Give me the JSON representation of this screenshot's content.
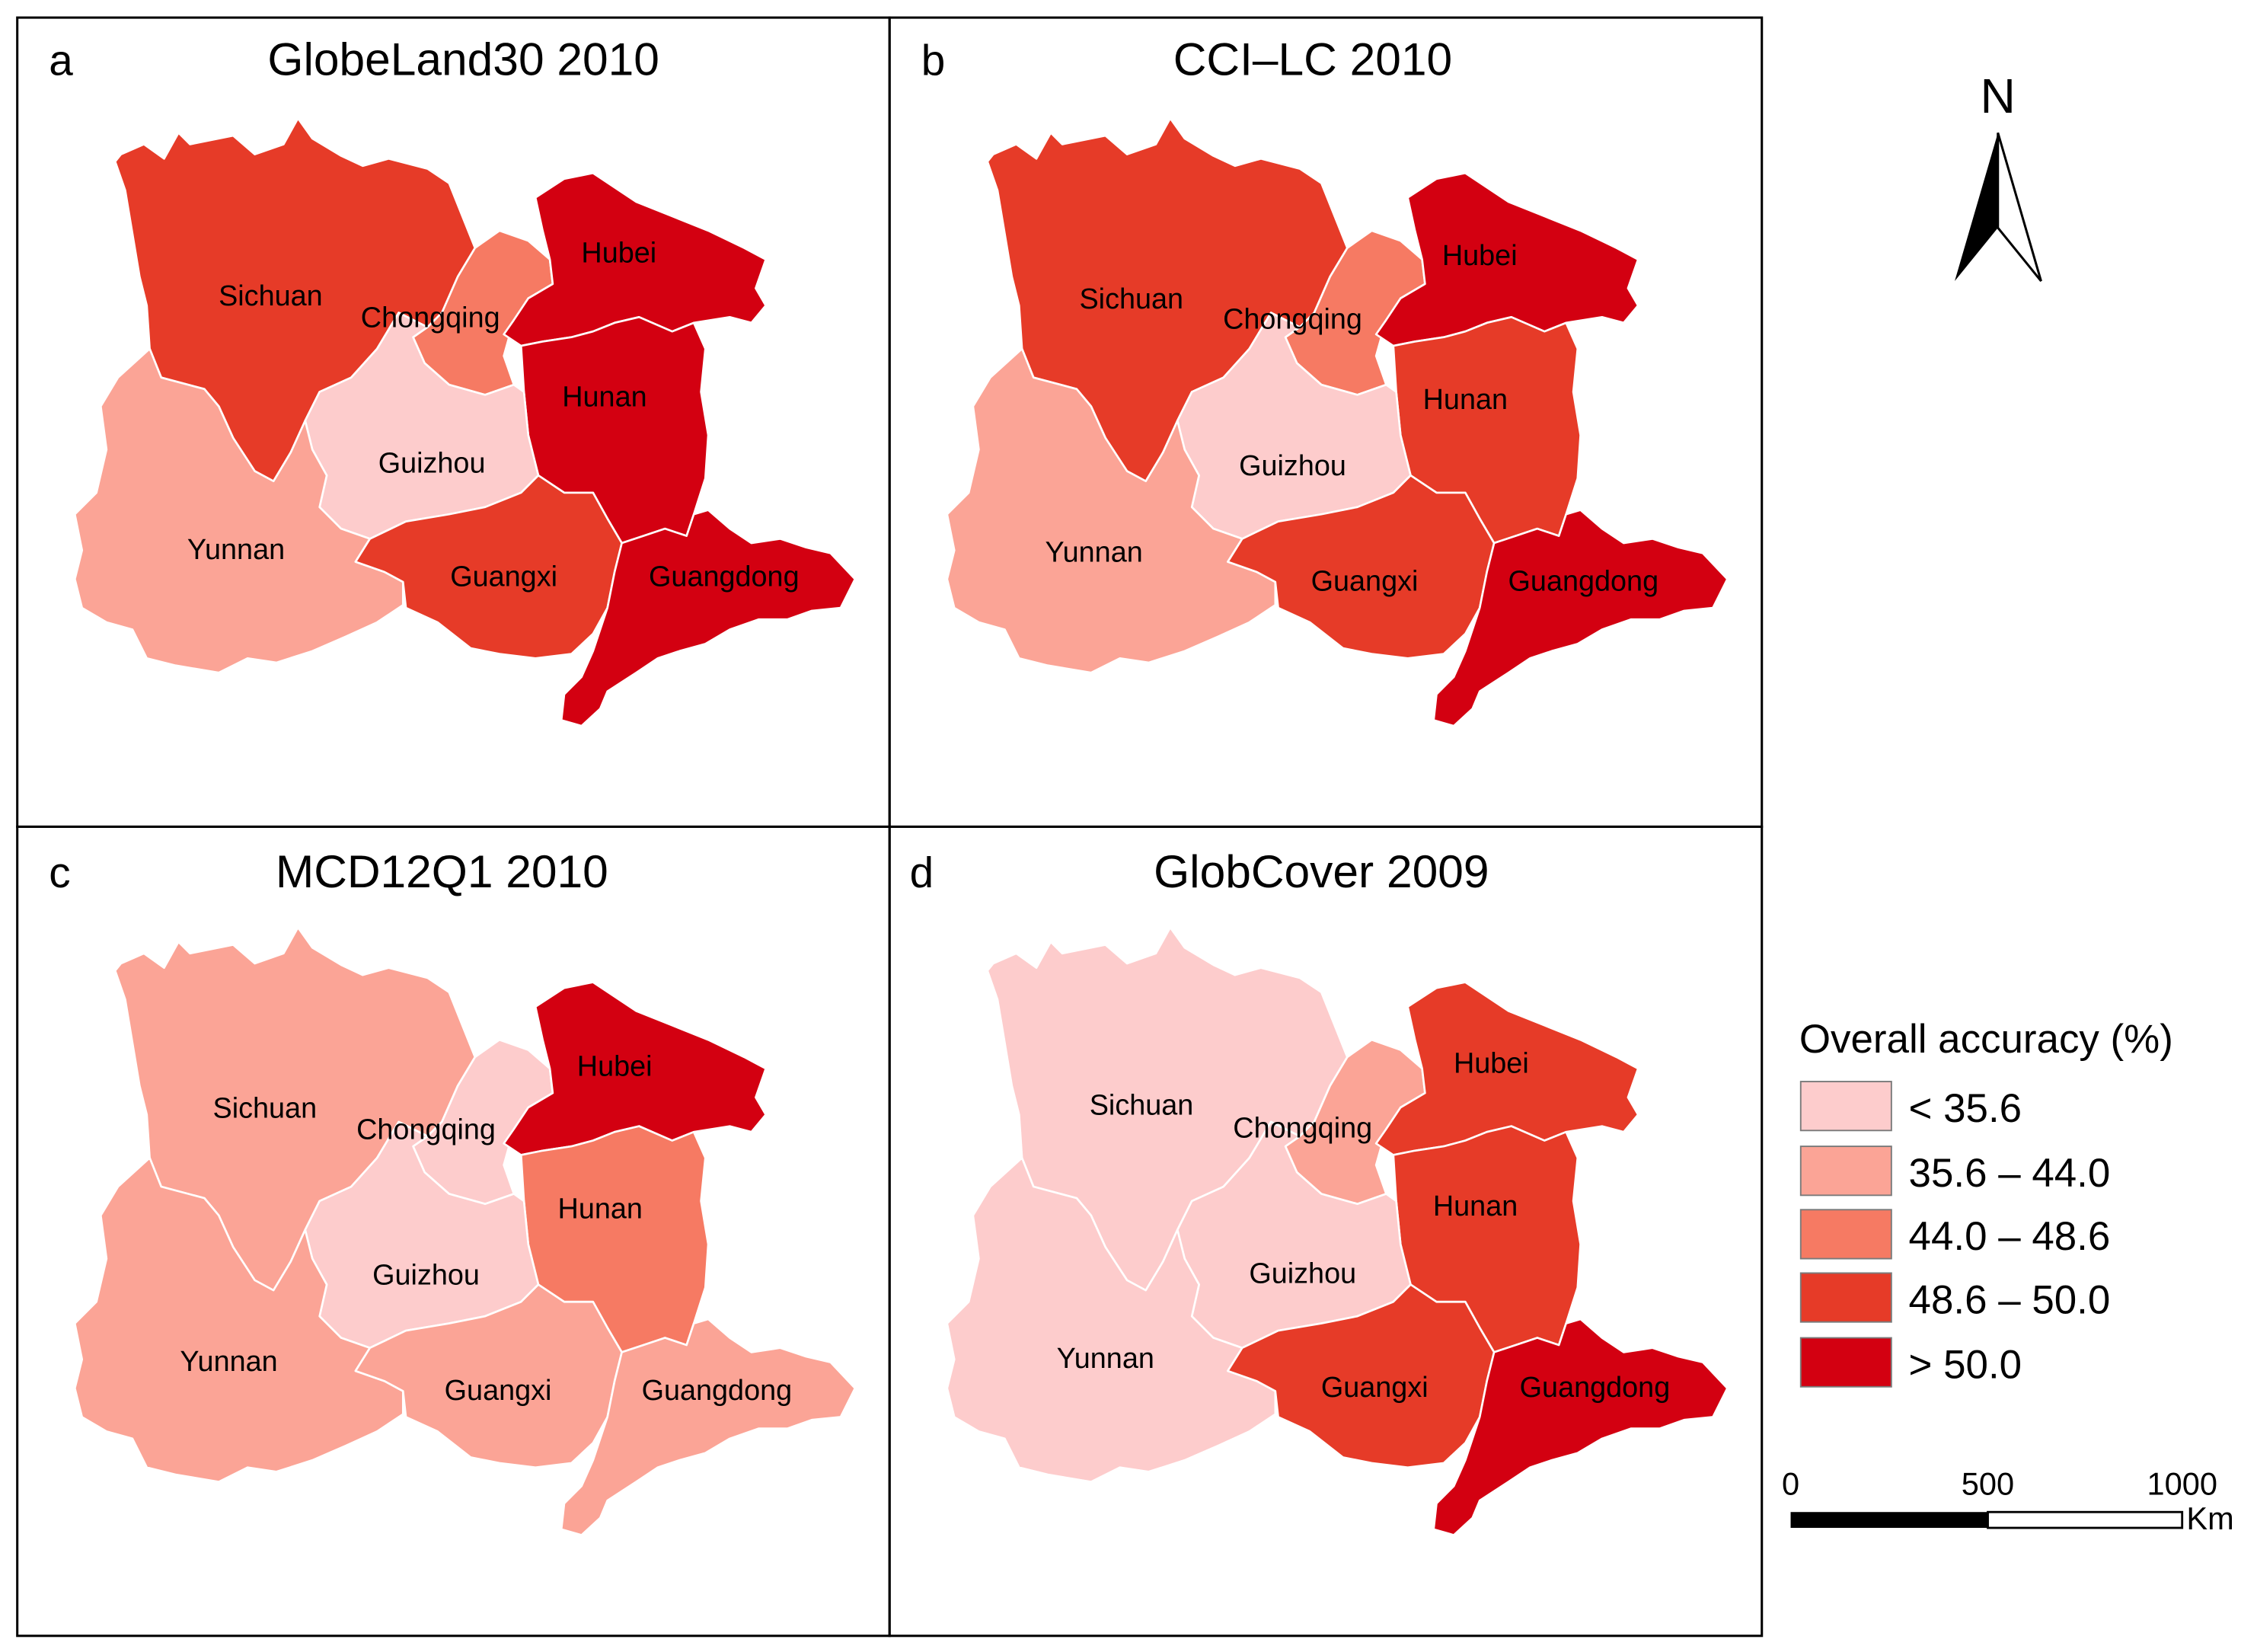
{
  "palette": {
    "c1": "#fdcccc",
    "c2": "#fba496",
    "c3": "#f67a63",
    "c4": "#e63b28",
    "c5": "#d30011",
    "border": "#ffffff",
    "frame": "#000000"
  },
  "panels": [
    {
      "letter": "a",
      "title": "GlobeLand30 2010",
      "classes": {
        "sichuan": 4,
        "chongqing": 3,
        "hubei": 5,
        "hunan": 5,
        "guizhou": 1,
        "yunnan": 2,
        "guangxi": 4,
        "guangdong": 5
      }
    },
    {
      "letter": "b",
      "title": "CCI–LC 2010",
      "classes": {
        "sichuan": 4,
        "chongqing": 3,
        "hubei": 5,
        "hunan": 4,
        "guizhou": 1,
        "yunnan": 2,
        "guangxi": 4,
        "guangdong": 5
      }
    },
    {
      "letter": "c",
      "title": "MCD12Q1 2010",
      "classes": {
        "sichuan": 2,
        "chongqing": 1,
        "hubei": 5,
        "hunan": 3,
        "guizhou": 1,
        "yunnan": 2,
        "guangxi": 2,
        "guangdong": 2
      }
    },
    {
      "letter": "d",
      "title": "GlobCover 2009",
      "classes": {
        "sichuan": 1,
        "chongqing": 2,
        "hubei": 4,
        "hunan": 4,
        "guizhou": 1,
        "yunnan": 1,
        "guangxi": 4,
        "guangdong": 5
      }
    }
  ],
  "province_labels": {
    "sichuan": "Sichuan",
    "chongqing": "Chongqing",
    "hubei": "Hubei",
    "hunan": "Hunan",
    "guizhou": "Guizhou",
    "yunnan": "Yunnan",
    "guangxi": "Guangxi",
    "guangdong": "Guangdong"
  },
  "north_arrow": {
    "label": "N"
  },
  "legend": {
    "title": "Overall accuracy (%)",
    "items": [
      "< 35.6",
      "35.6 – 44.0",
      "44.0 – 48.6",
      "48.6 – 50.0",
      "> 50.0"
    ]
  },
  "scale_bar": {
    "ticks": [
      "0",
      "500",
      "1000"
    ],
    "unit": "Km"
  }
}
